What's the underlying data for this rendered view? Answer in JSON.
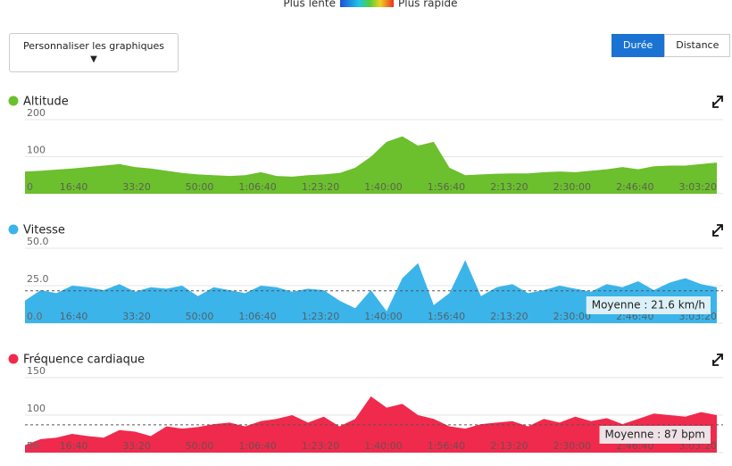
{
  "legend": {
    "slow": "Plus lente",
    "fast": "Plus rapide"
  },
  "controls": {
    "customize": "Personnaliser les graphiques",
    "toggle": [
      "Durée",
      "Distance"
    ],
    "active": 0
  },
  "chart_data": [
    {
      "type": "area",
      "title": "Altitude",
      "color": "#6cbf2d",
      "x": [
        0,
        250,
        500,
        750,
        1000,
        1250,
        1500,
        1750,
        2000,
        2250,
        2500,
        2750,
        3000,
        3250,
        3500,
        3750,
        4000,
        4250,
        4500,
        4750,
        5000,
        5250,
        5500,
        5750,
        6000,
        6250,
        6500,
        6750,
        7000,
        7250,
        7500,
        7750,
        8000,
        8250,
        8500,
        8750,
        9000,
        9250,
        9500,
        9750,
        10000,
        10250,
        10500,
        10750,
        11000
      ],
      "values": [
        60,
        62,
        65,
        68,
        72,
        76,
        80,
        72,
        68,
        62,
        56,
        52,
        50,
        48,
        50,
        58,
        48,
        46,
        50,
        52,
        56,
        70,
        100,
        140,
        155,
        130,
        140,
        70,
        50,
        52,
        54,
        55,
        55,
        58,
        60,
        58,
        62,
        66,
        72,
        66,
        74,
        76,
        76,
        80,
        84
      ],
      "xlim": [
        0,
        11100
      ],
      "xticks": [
        {
          "value": 1000,
          "label": "16:40"
        },
        {
          "value": 2000,
          "label": "33:20"
        },
        {
          "value": 3000,
          "label": "50:00"
        },
        {
          "value": 4000,
          "label": "1:06:40"
        },
        {
          "value": 5000,
          "label": "1:23:20"
        },
        {
          "value": 6000,
          "label": "1:40:00"
        },
        {
          "value": 7000,
          "label": "1:56:40"
        },
        {
          "value": 8000,
          "label": "2:13:20"
        },
        {
          "value": 9000,
          "label": "2:30:00"
        },
        {
          "value": 10000,
          "label": "2:46:40"
        },
        {
          "value": 11000,
          "label": "3:03:20"
        }
      ],
      "ylim": [
        0,
        200
      ],
      "yticks": [
        0,
        100,
        200
      ],
      "grid": true
    },
    {
      "type": "area",
      "title": "Vitesse",
      "color": "#3bb4ea",
      "x": [
        0,
        250,
        500,
        750,
        1000,
        1250,
        1500,
        1750,
        2000,
        2250,
        2500,
        2750,
        3000,
        3250,
        3500,
        3750,
        4000,
        4250,
        4500,
        4750,
        5000,
        5250,
        5500,
        5750,
        6000,
        6250,
        6500,
        6750,
        7000,
        7250,
        7500,
        7750,
        8000,
        8250,
        8500,
        8750,
        9000,
        9250,
        9500,
        9750,
        10000,
        10250,
        10500,
        10750,
        11000
      ],
      "values": [
        15,
        22,
        20,
        25,
        24,
        22,
        26,
        21,
        24,
        23,
        25,
        18,
        24,
        22,
        20,
        25,
        24,
        21,
        23,
        22,
        15,
        10,
        22,
        8,
        30,
        40,
        12,
        20,
        42,
        18,
        24,
        26,
        20,
        22,
        25,
        23,
        21,
        26,
        24,
        28,
        22,
        27,
        30,
        26,
        24
      ],
      "xlim": [
        0,
        11100
      ],
      "xticks": [
        {
          "value": 1000,
          "label": "16:40"
        },
        {
          "value": 2000,
          "label": "33:20"
        },
        {
          "value": 3000,
          "label": "50:00"
        },
        {
          "value": 4000,
          "label": "1:06:40"
        },
        {
          "value": 5000,
          "label": "1:23:20"
        },
        {
          "value": 6000,
          "label": "1:40:00"
        },
        {
          "value": 7000,
          "label": "1:56:40"
        },
        {
          "value": 8000,
          "label": "2:13:20"
        },
        {
          "value": 9000,
          "label": "2:30:00"
        },
        {
          "value": 10000,
          "label": "2:46:40"
        },
        {
          "value": 11000,
          "label": "3:03:20"
        }
      ],
      "ylim": [
        0,
        50
      ],
      "yticks": [
        {
          "value": 0,
          "label": "0.0"
        },
        {
          "value": 25,
          "label": "25.0"
        },
        {
          "value": 50,
          "label": "50.0"
        }
      ],
      "grid": true,
      "mean": 21.6,
      "mean_label": "Moyenne : 21.6 km/h"
    },
    {
      "type": "area",
      "title": "Fréquence cardiaque",
      "color": "#f02a4c",
      "x": [
        0,
        250,
        500,
        750,
        1000,
        1250,
        1500,
        1750,
        2000,
        2250,
        2500,
        2750,
        3000,
        3250,
        3500,
        3750,
        4000,
        4250,
        4500,
        4750,
        5000,
        5250,
        5500,
        5750,
        6000,
        6250,
        6500,
        6750,
        7000,
        7250,
        7500,
        7750,
        8000,
        8250,
        8500,
        8750,
        9000,
        9250,
        9500,
        9750,
        10000,
        10250,
        10500,
        10750,
        11000
      ],
      "values": [
        60,
        68,
        70,
        75,
        72,
        70,
        80,
        78,
        72,
        85,
        82,
        84,
        88,
        90,
        85,
        92,
        95,
        100,
        90,
        98,
        85,
        95,
        125,
        110,
        115,
        100,
        95,
        85,
        82,
        88,
        90,
        92,
        85,
        95,
        90,
        98,
        92,
        96,
        88,
        95,
        102,
        100,
        98,
        104,
        100
      ],
      "xlim": [
        0,
        11100
      ],
      "xticks": [
        {
          "value": 1000,
          "label": "16:40"
        },
        {
          "value": 2000,
          "label": "33:20"
        },
        {
          "value": 3000,
          "label": "50:00"
        },
        {
          "value": 4000,
          "label": "1:06:40"
        },
        {
          "value": 5000,
          "label": "1:23:20"
        },
        {
          "value": 6000,
          "label": "1:40:00"
        },
        {
          "value": 7000,
          "label": "1:56:40"
        },
        {
          "value": 8000,
          "label": "2:13:20"
        },
        {
          "value": 9000,
          "label": "2:30:00"
        },
        {
          "value": 10000,
          "label": "2:46:40"
        },
        {
          "value": 11000,
          "label": "3:03:20"
        }
      ],
      "ylim": [
        50,
        150
      ],
      "yticks": [
        50,
        100,
        150
      ],
      "grid": true,
      "mean": 87,
      "mean_label": "Moyenne : 87 bpm"
    }
  ]
}
